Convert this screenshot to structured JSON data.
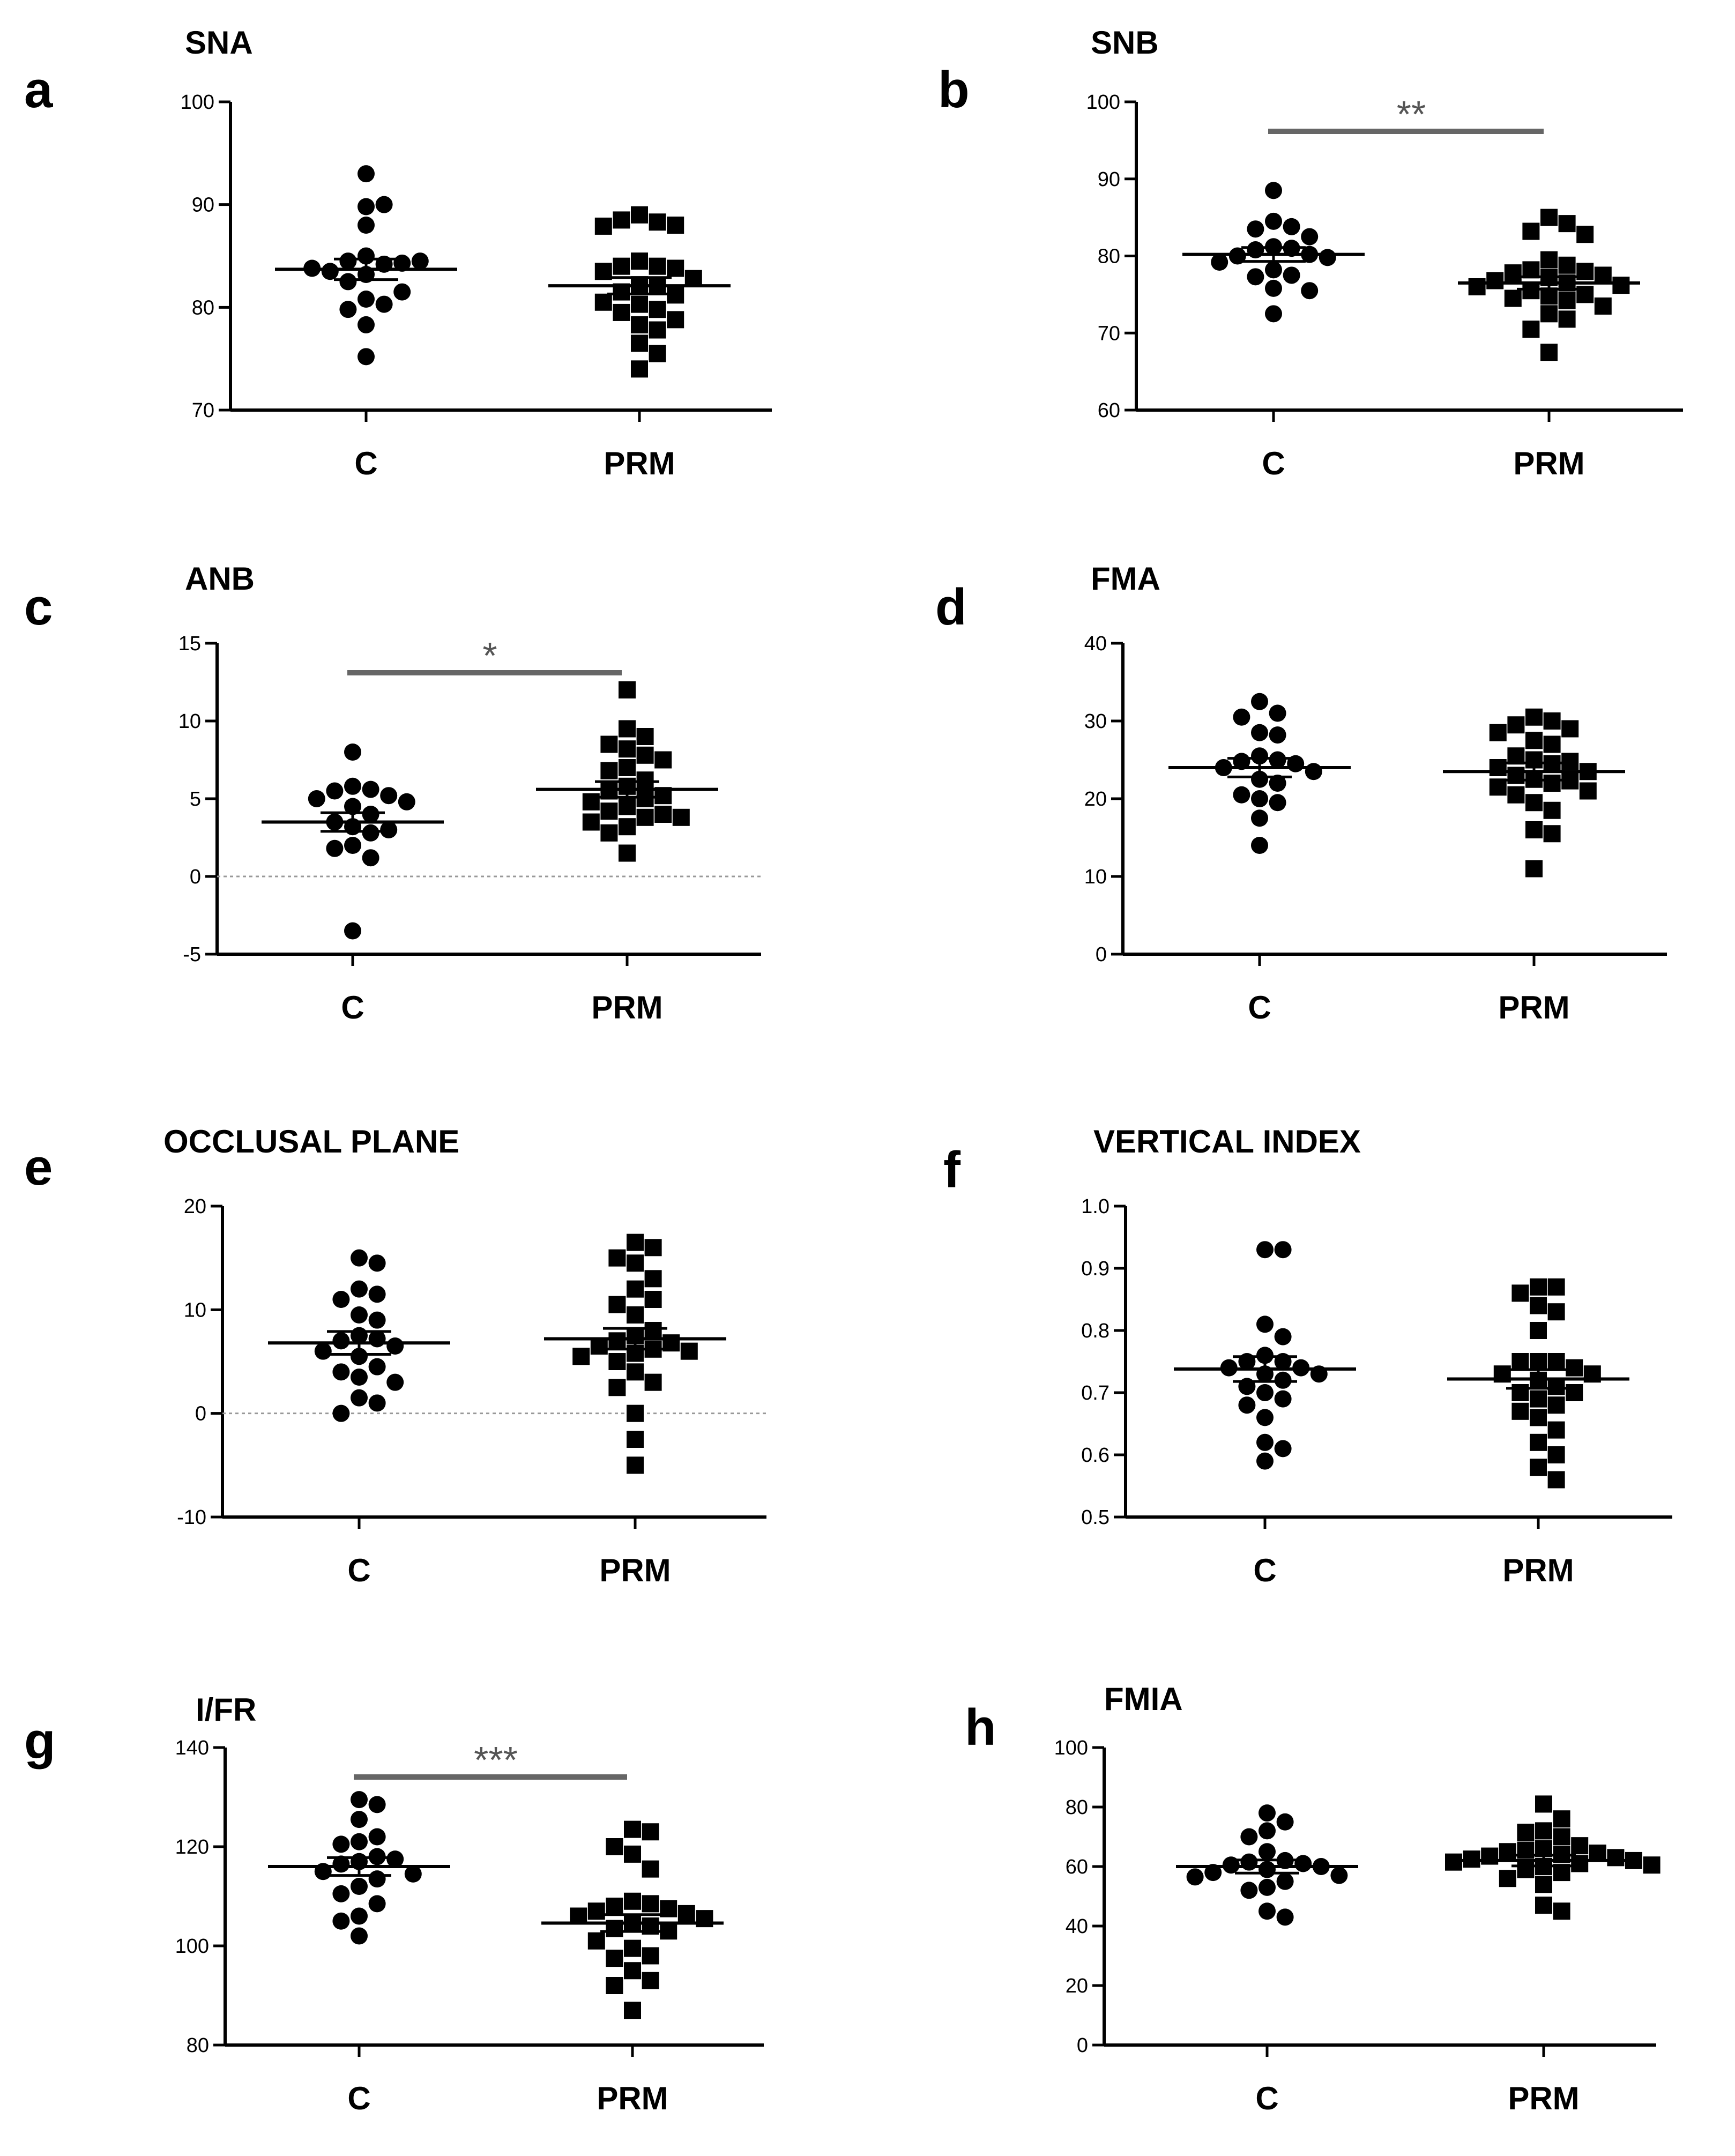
{
  "figure": {
    "categories": [
      "C",
      "PRM"
    ],
    "colors": {
      "marker": "#000000",
      "axis": "#000000",
      "sig_bar": "#666666",
      "zero_line": "#999999"
    }
  },
  "chart_data": [
    {
      "panel": "a",
      "title": "SNA",
      "type": "scatter",
      "categories": [
        "C",
        "PRM"
      ],
      "ylim": [
        70,
        100
      ],
      "yticks": [
        70,
        80,
        90,
        100
      ],
      "zero_line": false,
      "significance": null,
      "series": [
        {
          "name": "C",
          "marker": "circle",
          "mean": 83.7,
          "sem": 1.0,
          "values": [
            93,
            89.8,
            90,
            88,
            85,
            84.2,
            84.5,
            84.3,
            83.5,
            84.5,
            83.8,
            83.2,
            82.5,
            80.8,
            80.3,
            81.5,
            79.8,
            78.3,
            75.2
          ]
        },
        {
          "name": "PRM",
          "marker": "square",
          "mean": 82.1,
          "sem": 0.8,
          "values": [
            89,
            88.3,
            88.5,
            88,
            87.9,
            84.5,
            84,
            84,
            83.8,
            83.5,
            82.8,
            82.2,
            82,
            81.5,
            81.2,
            80.5,
            80.3,
            79.8,
            79.5,
            78.8,
            78.3,
            77.8,
            76.5,
            75.5,
            74
          ]
        }
      ]
    },
    {
      "panel": "b",
      "title": "SNB",
      "type": "scatter",
      "categories": [
        "C",
        "PRM"
      ],
      "ylim": [
        60,
        100
      ],
      "yticks": [
        60,
        70,
        80,
        90,
        100
      ],
      "zero_line": false,
      "significance": "**",
      "series": [
        {
          "name": "C",
          "marker": "circle",
          "mean": 80.2,
          "sem": 0.9,
          "values": [
            88.5,
            84.5,
            83.8,
            83.5,
            82.5,
            81.2,
            81,
            80.8,
            80.2,
            80,
            79.8,
            79.2,
            78.2,
            77.5,
            77.3,
            75.8,
            75.5,
            72.5
          ]
        },
        {
          "name": "PRM",
          "marker": "square",
          "mean": 76.5,
          "sem": 0.8,
          "values": [
            85,
            84.2,
            83.2,
            82.8,
            79.5,
            78.8,
            78.2,
            78,
            77.8,
            77.5,
            77.2,
            76.8,
            76.5,
            76.2,
            76,
            75.5,
            75,
            74.8,
            74.5,
            74.2,
            73.5,
            72.5,
            71.8,
            70.5,
            67.5
          ]
        }
      ]
    },
    {
      "panel": "c",
      "title": "ANB",
      "type": "scatter",
      "categories": [
        "C",
        "PRM"
      ],
      "ylim": [
        -5,
        15
      ],
      "yticks": [
        -5,
        0,
        5,
        10,
        15
      ],
      "zero_line": true,
      "significance": "*",
      "series": [
        {
          "name": "C",
          "marker": "circle",
          "mean": 3.5,
          "sem": 0.6,
          "values": [
            8,
            5.8,
            5.6,
            5.5,
            5.2,
            5,
            4.8,
            4.5,
            4,
            3.5,
            3.2,
            3,
            2.8,
            2,
            1.8,
            1.2,
            -3.5
          ]
        },
        {
          "name": "PRM",
          "marker": "square",
          "mean": 5.6,
          "sem": 0.5,
          "values": [
            12,
            9.5,
            9,
            8.5,
            8.2,
            7.8,
            7.5,
            7,
            6.8,
            6.2,
            5.8,
            5.5,
            5.2,
            5,
            4.8,
            4.5,
            4.2,
            4,
            3.8,
            3.8,
            3.5,
            3.2,
            2.8,
            1.5
          ]
        }
      ]
    },
    {
      "panel": "d",
      "title": "FMA",
      "type": "scatter",
      "categories": [
        "C",
        "PRM"
      ],
      "ylim": [
        0,
        40
      ],
      "yticks": [
        0,
        10,
        20,
        30,
        40
      ],
      "zero_line": false,
      "significance": null,
      "series": [
        {
          "name": "C",
          "marker": "circle",
          "mean": 24.0,
          "sem": 1.2,
          "values": [
            32.5,
            31,
            30.5,
            28.5,
            28.2,
            25.5,
            25,
            24.8,
            24.5,
            24,
            23.5,
            22.5,
            22,
            20.5,
            20,
            19.5,
            17.5,
            14
          ]
        },
        {
          "name": "PRM",
          "marker": "square",
          "mean": 23.5,
          "sem": 1.1,
          "values": [
            30.5,
            30,
            29.5,
            29,
            28.5,
            27.5,
            27,
            25.5,
            25,
            24.8,
            24.5,
            24,
            23.5,
            23,
            22.5,
            22.3,
            22,
            21.5,
            21,
            20.5,
            19.5,
            18.5,
            16,
            15.5,
            11
          ]
        }
      ]
    },
    {
      "panel": "e",
      "title": "OCCLUSAL PLANE",
      "type": "scatter",
      "categories": [
        "C",
        "PRM"
      ],
      "ylim": [
        -10,
        20
      ],
      "yticks": [
        -10,
        0,
        10,
        20
      ],
      "zero_line": true,
      "significance": null,
      "series": [
        {
          "name": "C",
          "marker": "circle",
          "mean": 6.8,
          "sem": 1.1,
          "values": [
            15,
            14.5,
            12,
            11.5,
            11,
            9.5,
            9,
            7.5,
            7.2,
            7,
            6.5,
            6,
            5.5,
            4.5,
            4,
            3.5,
            3,
            1.5,
            1,
            0
          ]
        },
        {
          "name": "PRM",
          "marker": "square",
          "mean": 7.2,
          "sem": 1.0,
          "values": [
            16.5,
            16,
            15,
            14.5,
            13,
            12,
            11,
            10.5,
            9.5,
            8,
            7.5,
            7,
            6.8,
            6.5,
            6.2,
            6,
            5.8,
            5.5,
            5,
            4,
            3,
            2.5,
            0,
            -2.5,
            -5
          ]
        }
      ]
    },
    {
      "panel": "f",
      "title": "VERTICAL INDEX",
      "type": "scatter",
      "categories": [
        "C",
        "PRM"
      ],
      "ylim": [
        0.5,
        1.0
      ],
      "yticks": [
        0.5,
        0.6,
        0.7,
        0.8,
        0.9,
        1.0
      ],
      "zero_line": false,
      "significance": null,
      "series": [
        {
          "name": "C",
          "marker": "circle",
          "mean": 0.738,
          "sem": 0.02,
          "values": [
            0.93,
            0.93,
            0.81,
            0.79,
            0.76,
            0.75,
            0.75,
            0.74,
            0.74,
            0.73,
            0.73,
            0.72,
            0.71,
            0.7,
            0.69,
            0.68,
            0.66,
            0.62,
            0.61,
            0.59
          ]
        },
        {
          "name": "PRM",
          "marker": "square",
          "mean": 0.722,
          "sem": 0.015,
          "values": [
            0.87,
            0.87,
            0.86,
            0.84,
            0.83,
            0.8,
            0.75,
            0.75,
            0.75,
            0.74,
            0.73,
            0.73,
            0.72,
            0.71,
            0.7,
            0.7,
            0.69,
            0.68,
            0.67,
            0.66,
            0.64,
            0.62,
            0.6,
            0.58,
            0.56
          ]
        }
      ]
    },
    {
      "panel": "g",
      "title": "I/FR",
      "type": "scatter",
      "categories": [
        "C",
        "PRM"
      ],
      "ylim": [
        80,
        140
      ],
      "yticks": [
        80,
        100,
        120,
        140
      ],
      "zero_line": false,
      "significance": "***",
      "series": [
        {
          "name": "C",
          "marker": "circle",
          "mean": 116.0,
          "sem": 1.8,
          "values": [
            129.5,
            128.5,
            125.5,
            122,
            121,
            120.5,
            118,
            117.5,
            117,
            116.5,
            115,
            114.5,
            113.5,
            112,
            110.5,
            108.5,
            106,
            105,
            102
          ]
        },
        {
          "name": "PRM",
          "marker": "square",
          "mean": 104.6,
          "sem": 1.7,
          "values": [
            123.5,
            123,
            120,
            118.5,
            115.5,
            109,
            108.5,
            108,
            107.5,
            107,
            106.5,
            106,
            105.5,
            104.5,
            104,
            103.5,
            103,
            101,
            99.5,
            98,
            97.5,
            95,
            93,
            92,
            87
          ]
        }
      ]
    },
    {
      "panel": "h",
      "title": "FMIA",
      "type": "scatter",
      "categories": [
        "C",
        "PRM"
      ],
      "ylim": [
        0,
        100
      ],
      "yticks": [
        0,
        20,
        40,
        60,
        80,
        100
      ],
      "zero_line": false,
      "significance": null,
      "series": [
        {
          "name": "C",
          "marker": "circle",
          "mean": 60.0,
          "sem": 2.2,
          "values": [
            78,
            75,
            72,
            70,
            65,
            62,
            61.5,
            61,
            60.5,
            60,
            59,
            58,
            57,
            56.5,
            55,
            53,
            52,
            45,
            43
          ]
        },
        {
          "name": "PRM",
          "marker": "square",
          "mean": 62.0,
          "sem": 1.8,
          "values": [
            81,
            76,
            72,
            71.5,
            70,
            67,
            66,
            65.5,
            65,
            64.5,
            64,
            63.5,
            63,
            62.5,
            62,
            61.5,
            61,
            60.5,
            60,
            59,
            58,
            56,
            54,
            47,
            45
          ]
        }
      ]
    }
  ]
}
